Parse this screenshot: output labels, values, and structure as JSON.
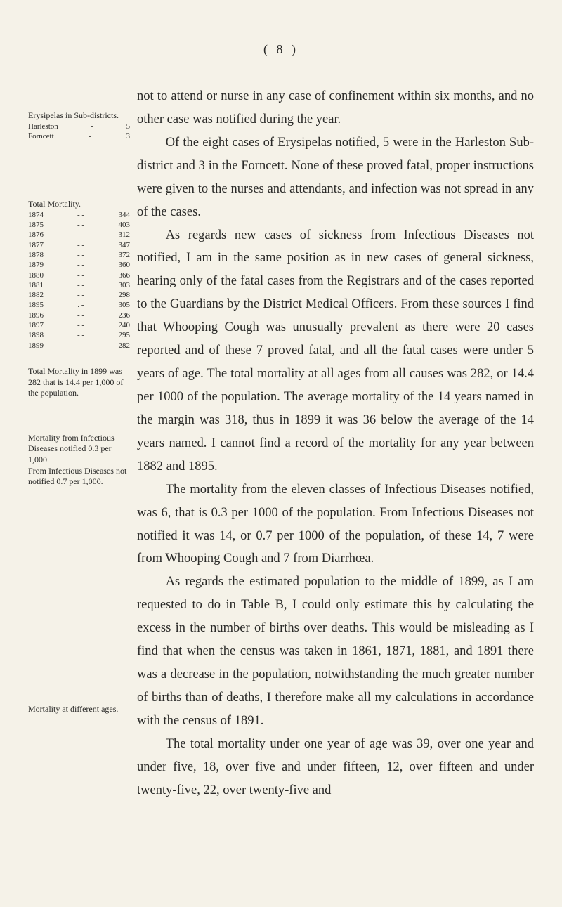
{
  "pageNumber": "( 8 )",
  "sidebar": {
    "block1": {
      "title": "Erysipelas in Sub-districts.",
      "rows": [
        {
          "label": "Harleston",
          "dash": "-",
          "value": "5"
        },
        {
          "label": "Forncett",
          "dash": "-",
          "value": "3"
        }
      ]
    },
    "block2": {
      "title": "Total Mortality.",
      "rows": [
        {
          "yr": "1874",
          "dash": "-  -",
          "val": "344"
        },
        {
          "yr": "1875",
          "dash": "-  -",
          "val": "403"
        },
        {
          "yr": "1876",
          "dash": "-  -",
          "val": "312"
        },
        {
          "yr": "1877",
          "dash": "-  -",
          "val": "347"
        },
        {
          "yr": "1878",
          "dash": "-  -",
          "val": "372"
        },
        {
          "yr": "1879",
          "dash": "-  -",
          "val": "360"
        },
        {
          "yr": "1880",
          "dash": "-  -",
          "val": "366"
        },
        {
          "yr": "1881",
          "dash": "-  -",
          "val": "303"
        },
        {
          "yr": "1882",
          "dash": "-  -",
          "val": "298"
        },
        {
          "yr": "1895",
          "dash": ".  -",
          "val": "305"
        },
        {
          "yr": "1896",
          "dash": "-  -",
          "val": "236"
        },
        {
          "yr": "1897",
          "dash": "-  -",
          "val": "240"
        },
        {
          "yr": "1898",
          "dash": "-  -",
          "val": "295"
        },
        {
          "yr": "1899",
          "dash": "-  -",
          "val": "282"
        }
      ]
    },
    "block3": {
      "text": "Total Mortality in 1899 was 282 that is 14.4 per 1,000 of the population."
    },
    "block4": {
      "text": "Mortality from Infectious Diseases notified 0.3 per 1,000.",
      "text2": "From Infectious Diseases not notified 0.7 per 1,000."
    },
    "block5": {
      "text": "Mortality at different ages."
    }
  },
  "body": {
    "p1": "not to attend or nurse in any case of confinement within six months, and no other case was notified during the year.",
    "p2": "Of the eight cases of Erysipelas notified, 5 were in the Harleston Sub-district and 3 in the Forncett. None of these proved fatal, proper instructions were given to the nurses and attendants, and infection was not spread in any of the cases.",
    "p3": "As regards new cases of sickness from Infectious Diseases not notified, I am in the same position as in new cases of general sickness, hearing only of the fatal cases from the Registrars and of the cases reported to the Guardians by the District Medical Officers. From these sources I find that Whooping Cough was unusually prevalent as there were 20 cases reported and of these 7 proved fatal, and all the fatal cases were under 5 years of age. The total mortality at all ages from all causes was 282, or 14.4 per 1000 of the population. The average mortality of the 14 years named in the margin was 318, thus in 1899 it was 36 below the average of the 14 years named. I cannot find a record of the mortality for any year between 1882 and 1895.",
    "p4": "The mortality from the eleven classes of Infectious Diseases notified, was 6, that is 0.3 per 1000 of the population. From Infectious Diseases not notified it was 14, or 0.7 per 1000 of the population, of these 14, 7 were from Whooping Cough and 7 from Diarrhœa.",
    "p5": "As regards the estimated population to the middle of 1899, as I am requested to do in Table B, I could only estimate this by calculating the excess in the number of births over deaths. This would be misleading as I find that when the census was taken in 1861, 1871, 1881, and 1891 there was a decrease in the population, notwithstanding the much greater number of births than of deaths, I therefore make all my calculations in accordance with the census of 1891.",
    "p6": "The total mortality under one year of age was 39, over one year and under five, 18, over five and under fifteen, 12, over fifteen and under twenty-five, 22, over twenty-five and"
  },
  "style": {
    "background": "#f5f2e8",
    "textColor": "#2a2a28",
    "bodyFontSize": 18.5,
    "sidebarFontSize": 12,
    "lineHeight": 1.78
  }
}
